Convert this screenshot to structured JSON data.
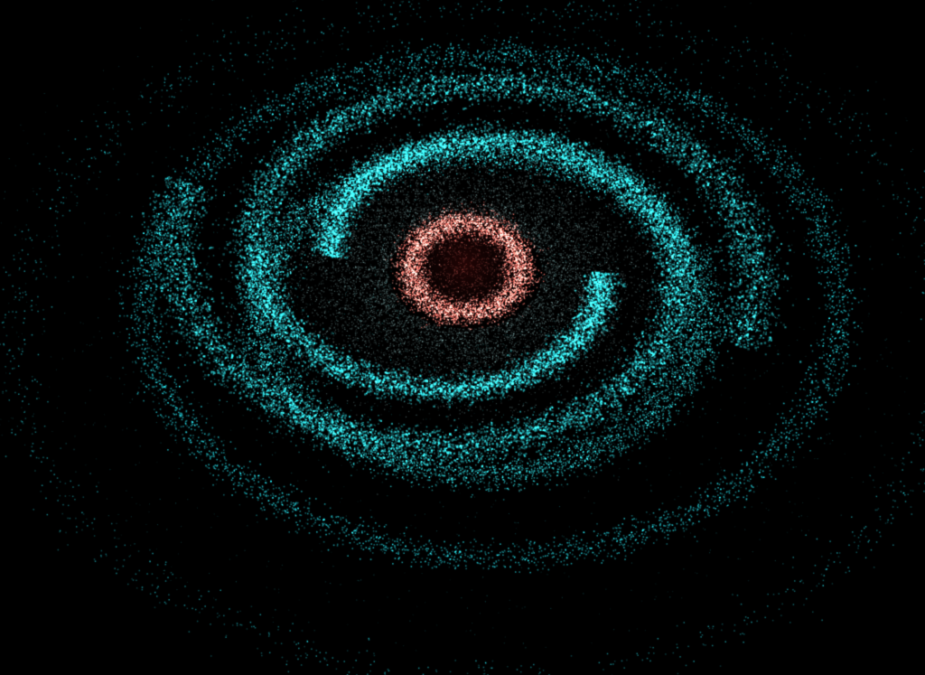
{
  "scene": {
    "background_color": "#000000",
    "subject": "spiral-galaxy-particles",
    "core_color": "#ff7a6e",
    "core_glow_color": "#ffb3a8",
    "inner_disk_color": "#9fd6d6",
    "arm_color": "#29c6cc",
    "outer_arm_color": "#1fb8c2"
  }
}
